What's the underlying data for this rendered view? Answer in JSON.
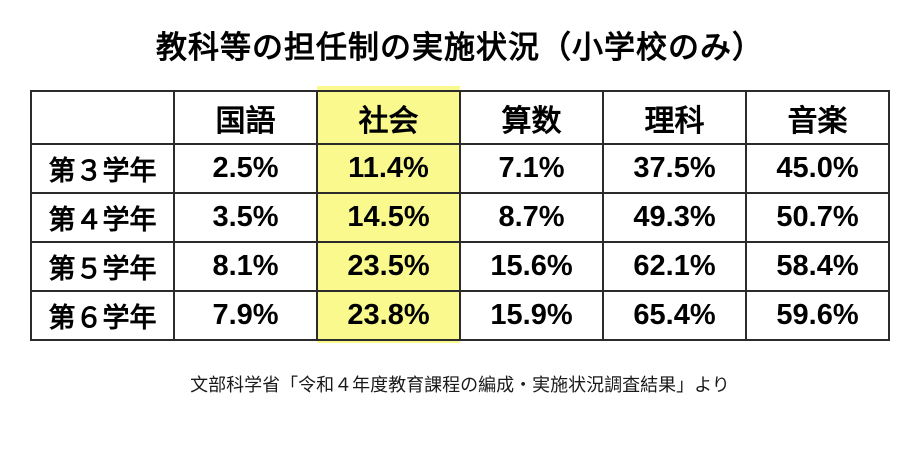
{
  "page": {
    "background": "#ffffff"
  },
  "title": "教科等の担任制の実施状況（小学校のみ）",
  "source_note": "文部科学省「令和４年度教育課程の編成・実施状況調査結果」より",
  "colors": {
    "highlight": "#F9F98E",
    "border": "#2b2b2b",
    "text": "#000000"
  },
  "table": {
    "corner_label": "",
    "columns": [
      "国語",
      "社会",
      "算数",
      "理科",
      "音楽"
    ],
    "highlighted_column": "社会",
    "rows": [
      {
        "label": "第３学年",
        "values": [
          "2.5%",
          "11.4%",
          "7.1%",
          "37.5%",
          "45.0%"
        ]
      },
      {
        "label": "第４学年",
        "values": [
          "3.5%",
          "14.5%",
          "8.7%",
          "49.3%",
          "50.7%"
        ]
      },
      {
        "label": "第５学年",
        "values": [
          "8.1%",
          "23.5%",
          "15.6%",
          "62.1%",
          "58.4%"
        ]
      },
      {
        "label": "第６学年",
        "values": [
          "7.9%",
          "23.8%",
          "15.9%",
          "65.4%",
          "59.6%"
        ]
      }
    ]
  },
  "chart_data": {
    "type": "table",
    "title": "教科等の担任制の実施状況（小学校のみ）",
    "categories": [
      "国語",
      "社会",
      "算数",
      "理科",
      "音楽"
    ],
    "series": [
      {
        "name": "第３学年",
        "values": [
          2.5,
          11.4,
          7.1,
          37.5,
          45.0
        ]
      },
      {
        "name": "第４学年",
        "values": [
          3.5,
          14.5,
          8.7,
          49.3,
          50.7
        ]
      },
      {
        "name": "第５学年",
        "values": [
          8.1,
          23.5,
          15.6,
          62.1,
          58.4
        ]
      },
      {
        "name": "第６学年",
        "values": [
          7.9,
          23.8,
          15.9,
          65.4,
          59.6
        ]
      }
    ],
    "unit": "%",
    "highlighted_category": "社会",
    "source": "文部科学省「令和４年度教育課程の編成・実施状況調査結果」より"
  }
}
